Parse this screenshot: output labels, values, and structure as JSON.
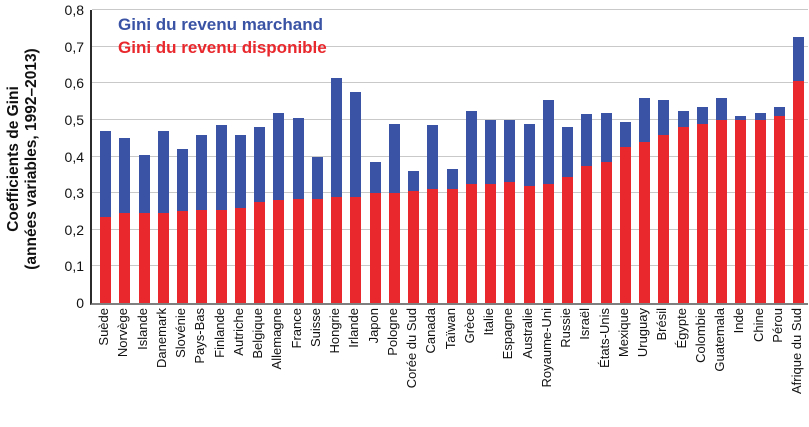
{
  "y_axis_title_line1": "Coefficients de Gini",
  "y_axis_title_line2": "(années variables, 1992–2013)",
  "legend": [
    {
      "label": "Gini du revenu marchand",
      "color": "#3A53A4"
    },
    {
      "label": "Gini du revenu disponible",
      "color": "#E8282D"
    }
  ],
  "chart_data": {
    "type": "bar",
    "title": "",
    "xlabel": "",
    "ylabel": "Coefficients de Gini (années variables, 1992–2013)",
    "ylim": [
      0,
      0.8
    ],
    "ytick_step": 0.1,
    "ytick_labels": [
      "0",
      "0,1",
      "0,2",
      "0,3",
      "0,4",
      "0,5",
      "0,6",
      "0,7",
      "0,8"
    ],
    "grid": true,
    "legend_position": "top-left",
    "categories": [
      "Suède",
      "Norvège",
      "Islande",
      "Danemark",
      "Slovénie",
      "Pays-Bas",
      "Finlande",
      "Autriche",
      "Belgique",
      "Allemagne",
      "France",
      "Suisse",
      "Hongrie",
      "Irlande",
      "Japon",
      "Pologne",
      "Corée du Sud",
      "Canada",
      "Taïwan",
      "Grèce",
      "Italie",
      "Espagne",
      "Australie",
      "Royaume-Uni",
      "Russie",
      "Israël",
      "États-Unis",
      "Mexique",
      "Uruguay",
      "Brésil",
      "Égypte",
      "Colombie",
      "Guatemala",
      "Inde",
      "Chine",
      "Pérou",
      "Afrique du Sud"
    ],
    "series": [
      {
        "name": "Gini du revenu marchand",
        "color": "#3A53A4",
        "values": [
          0.47,
          0.45,
          0.405,
          0.47,
          0.42,
          0.46,
          0.485,
          0.46,
          0.48,
          0.52,
          0.505,
          0.4,
          0.615,
          0.575,
          0.385,
          0.49,
          0.36,
          0.485,
          0.365,
          0.525,
          0.5,
          0.5,
          0.49,
          0.555,
          0.48,
          0.515,
          0.52,
          0.495,
          0.56,
          0.555,
          0.525,
          0.535,
          0.56,
          0.51,
          0.52,
          0.535,
          0.725
        ]
      },
      {
        "name": "Gini du revenu disponible",
        "color": "#E8282D",
        "values": [
          0.235,
          0.245,
          0.245,
          0.245,
          0.25,
          0.255,
          0.255,
          0.26,
          0.275,
          0.28,
          0.285,
          0.285,
          0.29,
          0.29,
          0.3,
          0.3,
          0.305,
          0.31,
          0.31,
          0.325,
          0.325,
          0.33,
          0.32,
          0.325,
          0.345,
          0.375,
          0.385,
          0.425,
          0.44,
          0.46,
          0.48,
          0.49,
          0.5,
          0.5,
          0.5,
          0.51,
          0.605
        ]
      }
    ]
  }
}
